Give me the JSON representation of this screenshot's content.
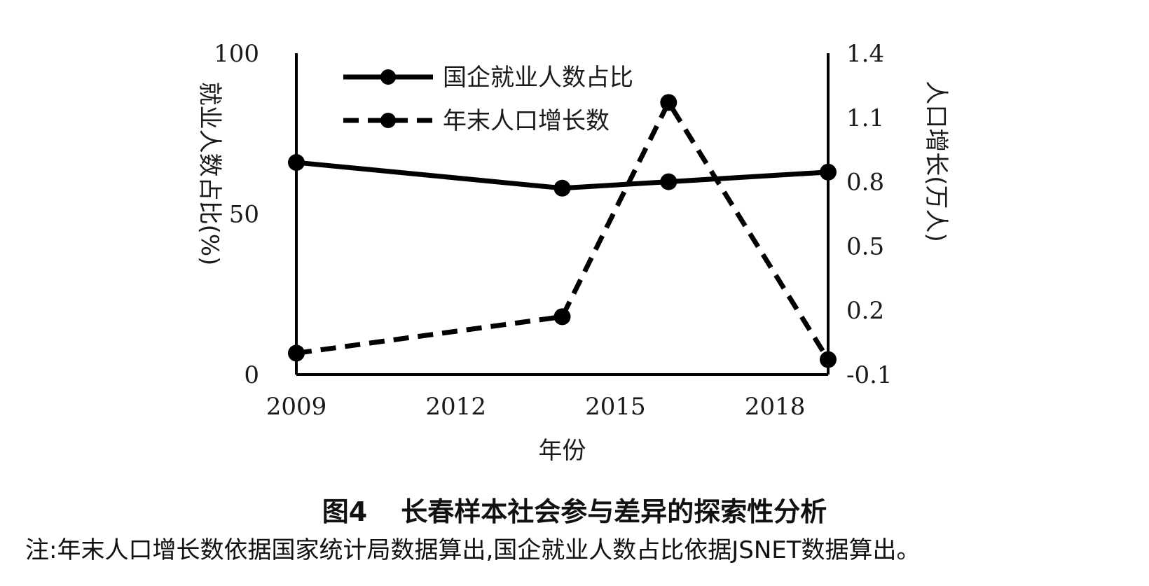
{
  "chart_data": {
    "type": "line",
    "xlabel": "年份",
    "x": [
      2009,
      2014,
      2016,
      2019
    ],
    "x_ticks": [
      "2009",
      "2012",
      "2015",
      "2018"
    ],
    "xlim": [
      2009,
      2019
    ],
    "y_left": {
      "label": "就业人数占比(%)",
      "ylim": [
        0,
        100
      ],
      "ticks": [
        "0",
        "50",
        "100"
      ]
    },
    "y_right": {
      "label": "人口增长(万人)",
      "ylim": [
        -0.1,
        1.4
      ],
      "ticks": [
        "-0.1",
        "0.2",
        "0.5",
        "0.8",
        "1.1",
        "1.4"
      ]
    },
    "series": [
      {
        "name": "国企就业人数占比",
        "axis": "left",
        "style": "solid",
        "values": [
          66,
          58,
          60,
          63
        ]
      },
      {
        "name": "年末人口增长数",
        "axis": "right",
        "style": "dashed",
        "values": [
          0.0,
          0.17,
          1.17,
          -0.03
        ]
      }
    ],
    "legend_position": "top-left",
    "grid": false,
    "colors": {
      "line": "#000000"
    }
  },
  "caption": {
    "figure_number": "图4",
    "title": "长春样本社会参与差异的探索性分析",
    "note": "注:年末人口增长数依据国家统计局数据算出,国企就业人数占比依据JSNET数据算出。"
  }
}
